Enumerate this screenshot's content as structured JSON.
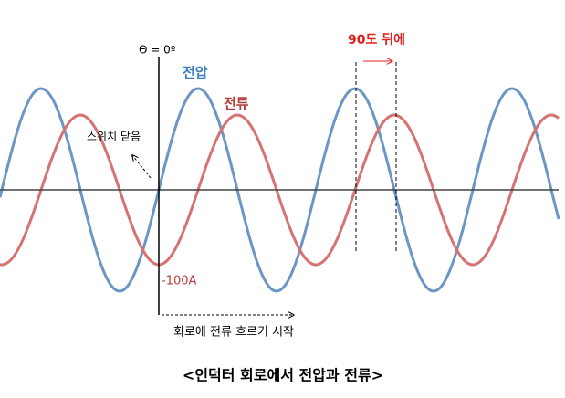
{
  "labels": {
    "theta": "Θ = 0º",
    "voltage": "전압",
    "current": "전류",
    "delay": "90도 뒤에",
    "switch": "스위치 닫음",
    "min_current": "-100A",
    "start": "회로에 전류 흐르기 시작"
  },
  "caption": "<인덕터 회로에서 전압과 전류>"
}
